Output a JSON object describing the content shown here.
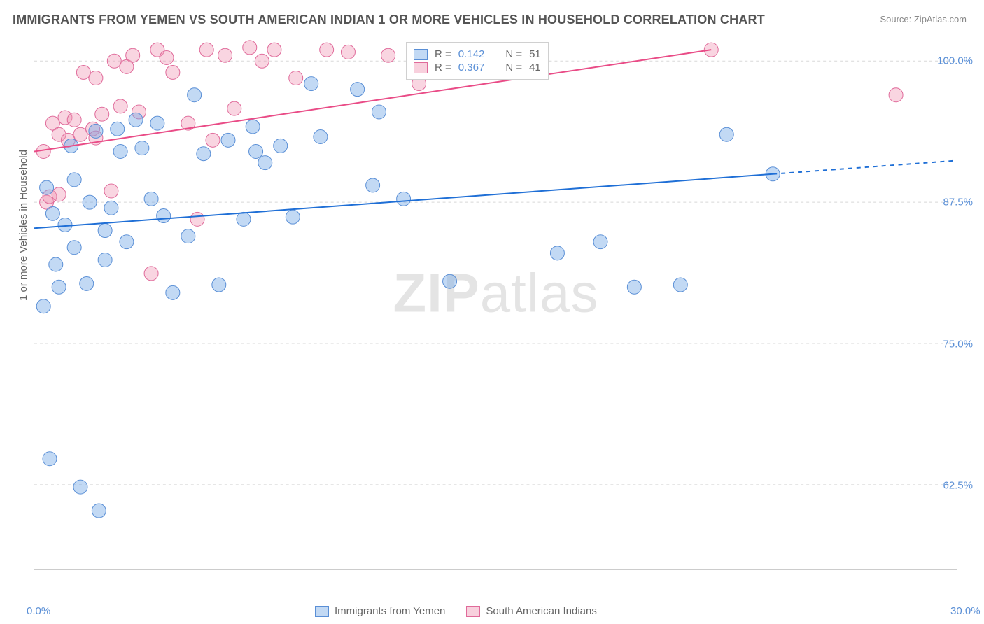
{
  "title": "IMMIGRANTS FROM YEMEN VS SOUTH AMERICAN INDIAN 1 OR MORE VEHICLES IN HOUSEHOLD CORRELATION CHART",
  "source": "Source: ZipAtlas.com",
  "watermark_bold": "ZIP",
  "watermark_rest": "atlas",
  "chart": {
    "type": "scatter",
    "ylabel": "1 or more Vehicles in Household",
    "xlim": [
      0.0,
      30.0
    ],
    "ylim": [
      55.0,
      102.0
    ],
    "yticks": [
      {
        "value": 62.5,
        "label": "62.5%"
      },
      {
        "value": 75.0,
        "label": "75.0%"
      },
      {
        "value": 87.5,
        "label": "87.5%"
      },
      {
        "value": 100.0,
        "label": "100.0%"
      }
    ],
    "xtick_positions": [
      0.0,
      6.0,
      12.0,
      18.0,
      24.0,
      30.0
    ],
    "xaxis_labels": [
      {
        "value": 0.0,
        "label": "0.0%"
      },
      {
        "value": 30.0,
        "label": "30.0%"
      }
    ],
    "grid_color": "#d8d8d8",
    "background_color": "#ffffff",
    "axis_color": "#cccccc",
    "text_color_axis": "#5a8fd6",
    "legend_top": {
      "rows": [
        {
          "swatch": "blue",
          "r_label": "R =",
          "r_value": "0.142",
          "n_label": "N =",
          "n_value": "51"
        },
        {
          "swatch": "pink",
          "r_label": "R =",
          "r_value": "0.367",
          "n_label": "N =",
          "n_value": "41"
        }
      ]
    },
    "legend_bottom": [
      {
        "swatch": "blue",
        "label": "Immigrants from Yemen"
      },
      {
        "swatch": "pink",
        "label": "South American Indians"
      }
    ],
    "series": [
      {
        "name": "Immigrants from Yemen",
        "marker_color": "rgba(120,170,230,0.45)",
        "marker_stroke": "#5a8fd6",
        "marker_radius": 10,
        "line_color": "#1f6fd6",
        "line_width": 2,
        "regression": {
          "x1": 0.0,
          "y1": 85.2,
          "x2": 24.0,
          "y2": 90.0,
          "x2_dash_end": 30.0,
          "y2_dash_end": 91.2
        },
        "points": [
          [
            0.3,
            78.3
          ],
          [
            0.4,
            88.8
          ],
          [
            0.5,
            64.8
          ],
          [
            0.6,
            86.5
          ],
          [
            0.7,
            82.0
          ],
          [
            0.8,
            80.0
          ],
          [
            1.0,
            85.5
          ],
          [
            1.2,
            92.5
          ],
          [
            1.3,
            83.5
          ],
          [
            1.3,
            89.5
          ],
          [
            1.5,
            62.3
          ],
          [
            1.7,
            80.3
          ],
          [
            1.8,
            87.5
          ],
          [
            2.0,
            93.8
          ],
          [
            2.1,
            60.2
          ],
          [
            2.3,
            82.4
          ],
          [
            2.3,
            85.0
          ],
          [
            2.5,
            87.0
          ],
          [
            2.7,
            94.0
          ],
          [
            2.8,
            92.0
          ],
          [
            3.0,
            84.0
          ],
          [
            3.3,
            94.8
          ],
          [
            3.5,
            92.3
          ],
          [
            3.8,
            87.8
          ],
          [
            4.0,
            94.5
          ],
          [
            4.2,
            86.3
          ],
          [
            4.5,
            79.5
          ],
          [
            5.0,
            84.5
          ],
          [
            5.2,
            97.0
          ],
          [
            5.5,
            91.8
          ],
          [
            6.0,
            80.2
          ],
          [
            6.3,
            93.0
          ],
          [
            6.8,
            86.0
          ],
          [
            7.1,
            94.2
          ],
          [
            7.2,
            92.0
          ],
          [
            7.5,
            91.0
          ],
          [
            8.0,
            92.5
          ],
          [
            8.4,
            86.2
          ],
          [
            9.0,
            98.0
          ],
          [
            9.3,
            93.3
          ],
          [
            10.5,
            97.5
          ],
          [
            11.0,
            89.0
          ],
          [
            11.2,
            95.5
          ],
          [
            12.0,
            87.8
          ],
          [
            13.5,
            80.5
          ],
          [
            17.0,
            83.0
          ],
          [
            18.4,
            84.0
          ],
          [
            19.5,
            80.0
          ],
          [
            21.0,
            80.2
          ],
          [
            22.5,
            93.5
          ],
          [
            24.0,
            90.0
          ]
        ]
      },
      {
        "name": "South American Indians",
        "marker_color": "rgba(240,150,180,0.40)",
        "marker_stroke": "#e06a9a",
        "marker_radius": 10,
        "line_color": "#e94b86",
        "line_width": 2,
        "regression": {
          "x1": 0.0,
          "y1": 92.0,
          "x2": 22.0,
          "y2": 101.0
        },
        "points": [
          [
            0.3,
            92.0
          ],
          [
            0.4,
            87.5
          ],
          [
            0.5,
            88.0
          ],
          [
            0.6,
            94.5
          ],
          [
            0.8,
            93.5
          ],
          [
            0.8,
            88.2
          ],
          [
            1.0,
            95.0
          ],
          [
            1.1,
            93.0
          ],
          [
            1.3,
            94.8
          ],
          [
            1.5,
            93.5
          ],
          [
            1.6,
            99.0
          ],
          [
            1.9,
            94.0
          ],
          [
            2.0,
            98.5
          ],
          [
            2.0,
            93.2
          ],
          [
            2.2,
            95.3
          ],
          [
            2.5,
            88.5
          ],
          [
            2.6,
            100.0
          ],
          [
            2.8,
            96.0
          ],
          [
            3.0,
            99.5
          ],
          [
            3.2,
            100.5
          ],
          [
            3.4,
            95.5
          ],
          [
            3.8,
            81.2
          ],
          [
            4.0,
            101.0
          ],
          [
            4.3,
            100.3
          ],
          [
            4.5,
            99.0
          ],
          [
            5.0,
            94.5
          ],
          [
            5.3,
            86.0
          ],
          [
            5.6,
            101.0
          ],
          [
            5.8,
            93.0
          ],
          [
            6.2,
            100.5
          ],
          [
            6.5,
            95.8
          ],
          [
            7.0,
            101.2
          ],
          [
            7.4,
            100.0
          ],
          [
            7.8,
            101.0
          ],
          [
            8.5,
            98.5
          ],
          [
            9.5,
            101.0
          ],
          [
            10.2,
            100.8
          ],
          [
            11.5,
            100.5
          ],
          [
            12.5,
            98.0
          ],
          [
            22.0,
            101.0
          ],
          [
            28.0,
            97.0
          ]
        ]
      }
    ]
  }
}
